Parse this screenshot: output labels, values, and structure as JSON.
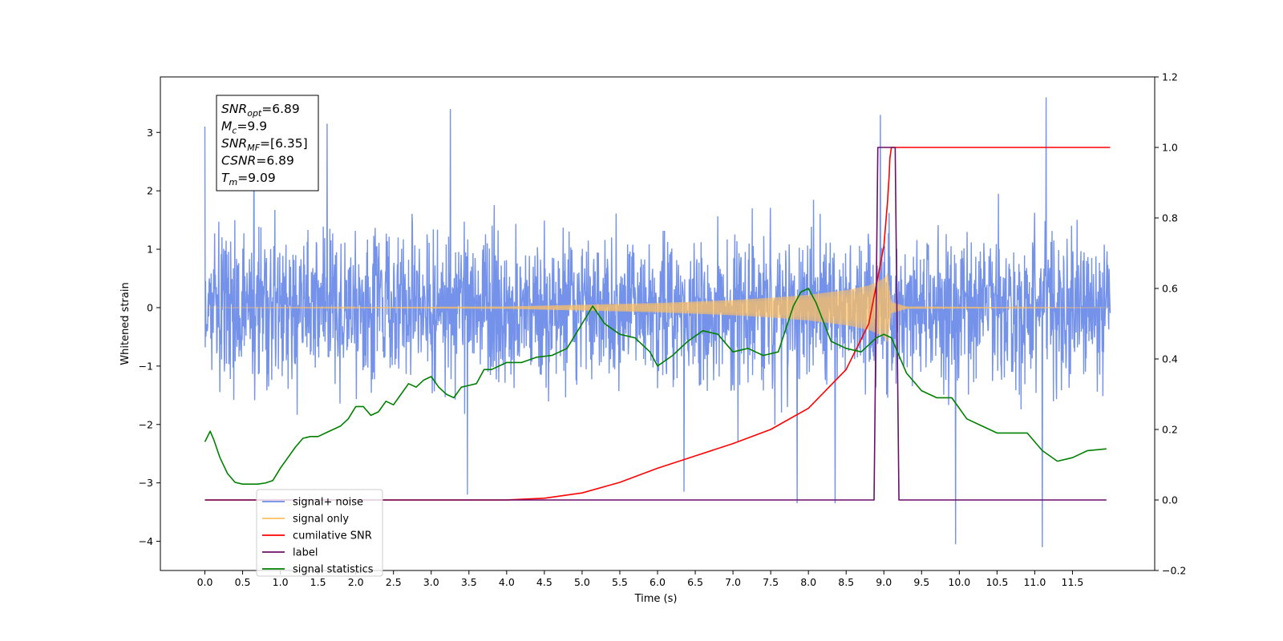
{
  "chart_data": {
    "type": "line",
    "xlabel": "Time (s)",
    "ylabel_left": "Whitened strain",
    "ylabel_right": "",
    "xlim": [
      -0.59,
      12.59
    ],
    "ylim_left": [
      -4.5,
      3.95
    ],
    "ylim_right": [
      -0.2,
      1.2
    ],
    "x_ticks": [
      0.0,
      0.5,
      1.0,
      1.5,
      2.0,
      2.5,
      3.0,
      3.5,
      4.0,
      4.5,
      5.0,
      5.5,
      6.0,
      6.5,
      7.0,
      7.5,
      8.0,
      8.5,
      9.0,
      9.5,
      10.0,
      10.5,
      11.0,
      11.5
    ],
    "x_tick_labels": [
      "0.0",
      "0.5",
      "1.0",
      "1.5",
      "2.0",
      "2.5",
      "3.0",
      "3.5",
      "4.0",
      "4.5",
      "5.0",
      "5.5",
      "6.0",
      "6.5",
      "7.0",
      "7.5",
      "8.0",
      "8.5",
      "9.0",
      "9.5",
      "10.0",
      "10.5",
      "11.0",
      "11.5"
    ],
    "y_left_ticks": [
      -4,
      -3,
      -2,
      -1,
      0,
      1,
      2,
      3
    ],
    "y_left_tick_labels": [
      "−4",
      "−3",
      "−2",
      "−1",
      "0",
      "1",
      "2",
      "3"
    ],
    "y_right_ticks": [
      -0.2,
      0.0,
      0.2,
      0.4,
      0.6,
      0.8,
      1.0,
      1.2
    ],
    "y_right_tick_labels": [
      "−0.2",
      "0.0",
      "0.2",
      "0.4",
      "0.6",
      "0.8",
      "1.0",
      "1.2"
    ],
    "grid": false,
    "legend_placement": "lower-left",
    "legend": [
      {
        "label": "signal+ noise",
        "color": "#6d8ce8"
      },
      {
        "label": "signal only",
        "color": "#ffc060"
      },
      {
        "label": "cumilative SNR",
        "color": "#ff0000"
      },
      {
        "label": "label",
        "color": "#6a0f6a"
      },
      {
        "label": "signal statistics",
        "color": "#008000"
      }
    ],
    "stats_box": {
      "lines": [
        {
          "base": "SNR",
          "sub": "opt",
          "value": "=6.89"
        },
        {
          "base": "M",
          "sub": "c",
          "value": "=9.9"
        },
        {
          "base": "SNR",
          "sub": "MF",
          "value": "=[6.35]"
        },
        {
          "base": "CSNR",
          "sub": "",
          "value": "=6.89"
        },
        {
          "base": "T",
          "sub": "m",
          "value": "=9.09"
        }
      ]
    },
    "series": [
      {
        "name": "signal+ noise",
        "axis": "left",
        "color": "#6d8ce8",
        "x_range": [
          0.0,
          12.0
        ],
        "noise_std": 0.85,
        "min": -4.1,
        "max": 3.6,
        "outliers": [
          {
            "x": 0.0,
            "y": 3.1
          },
          {
            "x": 0.65,
            "y": 3.1
          },
          {
            "x": 1.62,
            "y": 3.15
          },
          {
            "x": 3.25,
            "y": 3.4
          },
          {
            "x": 3.48,
            "y": -3.2
          },
          {
            "x": 8.95,
            "y": 3.3
          },
          {
            "x": 9.95,
            "y": -4.05
          },
          {
            "x": 11.15,
            "y": 3.6
          },
          {
            "x": 11.1,
            "y": -4.1
          },
          {
            "x": 7.85,
            "y": -3.35
          },
          {
            "x": 8.35,
            "y": -3.35
          },
          {
            "x": 6.35,
            "y": -3.15
          }
        ]
      },
      {
        "name": "signal only",
        "axis": "left",
        "color": "#ffc060",
        "x": [
          0,
          4.0,
          5.0,
          6.0,
          7.0,
          7.5,
          8.0,
          8.5,
          8.8,
          9.0,
          9.05,
          9.1,
          9.3,
          12.0
        ],
        "envelope": [
          0.0,
          0.02,
          0.05,
          0.08,
          0.13,
          0.17,
          0.22,
          0.3,
          0.38,
          0.5,
          0.6,
          0.1,
          0.02,
          0.0
        ]
      },
      {
        "name": "cumilative SNR",
        "axis": "right",
        "color": "#ff0000",
        "x": [
          0.0,
          4.0,
          4.5,
          5.0,
          5.5,
          6.0,
          6.5,
          7.0,
          7.5,
          8.0,
          8.5,
          8.8,
          9.0,
          9.05,
          9.07,
          9.08,
          9.1,
          12.0
        ],
        "y": [
          0.0,
          0.0,
          0.005,
          0.02,
          0.05,
          0.09,
          0.125,
          0.16,
          0.2,
          0.26,
          0.37,
          0.5,
          0.72,
          0.85,
          0.92,
          0.97,
          1.0,
          1.0
        ]
      },
      {
        "name": "label",
        "axis": "right",
        "color": "#6a0f6a",
        "x": [
          0.0,
          8.87,
          8.92,
          9.15,
          9.2,
          11.95
        ],
        "y": [
          0.0,
          0.0,
          1.0,
          1.0,
          0.0,
          0.0
        ]
      },
      {
        "name": "signal statistics",
        "axis": "right",
        "color": "#008000",
        "x": [
          0.0,
          0.07,
          0.12,
          0.2,
          0.3,
          0.4,
          0.5,
          0.6,
          0.7,
          0.8,
          0.9,
          1.0,
          1.1,
          1.2,
          1.3,
          1.4,
          1.5,
          1.6,
          1.7,
          1.8,
          1.9,
          2.0,
          2.1,
          2.2,
          2.3,
          2.4,
          2.5,
          2.6,
          2.7,
          2.8,
          2.9,
          3.0,
          3.1,
          3.2,
          3.3,
          3.4,
          3.5,
          3.6,
          3.7,
          3.8,
          4.0,
          4.2,
          4.4,
          4.6,
          4.8,
          5.0,
          5.14,
          5.3,
          5.5,
          5.7,
          5.9,
          6.0,
          6.2,
          6.4,
          6.6,
          6.8,
          7.0,
          7.2,
          7.4,
          7.6,
          7.8,
          7.9,
          8.0,
          8.1,
          8.3,
          8.5,
          8.7,
          8.9,
          9.0,
          9.1,
          9.3,
          9.5,
          9.7,
          9.9,
          10.1,
          10.3,
          10.5,
          10.7,
          10.9,
          11.1,
          11.3,
          11.5,
          11.7,
          11.95
        ],
        "y": [
          0.165,
          0.195,
          0.17,
          0.12,
          0.075,
          0.05,
          0.045,
          0.045,
          0.045,
          0.048,
          0.055,
          0.09,
          0.12,
          0.15,
          0.175,
          0.18,
          0.18,
          0.19,
          0.2,
          0.21,
          0.23,
          0.265,
          0.265,
          0.24,
          0.25,
          0.28,
          0.27,
          0.3,
          0.33,
          0.32,
          0.34,
          0.35,
          0.32,
          0.3,
          0.29,
          0.32,
          0.325,
          0.33,
          0.37,
          0.37,
          0.39,
          0.39,
          0.405,
          0.41,
          0.43,
          0.5,
          0.55,
          0.5,
          0.47,
          0.46,
          0.42,
          0.38,
          0.41,
          0.45,
          0.48,
          0.47,
          0.42,
          0.43,
          0.41,
          0.42,
          0.55,
          0.59,
          0.6,
          0.56,
          0.45,
          0.43,
          0.42,
          0.46,
          0.47,
          0.46,
          0.36,
          0.31,
          0.29,
          0.29,
          0.23,
          0.21,
          0.19,
          0.19,
          0.19,
          0.14,
          0.11,
          0.12,
          0.14,
          0.145
        ]
      }
    ]
  }
}
